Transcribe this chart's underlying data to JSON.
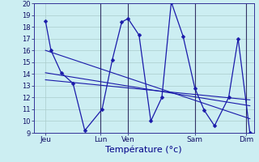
{
  "xlabel": "Température (°c)",
  "background_color": "#cceef2",
  "grid_color": "#aacccc",
  "line_color": "#1a1aaa",
  "ylim": [
    9,
    20
  ],
  "yticks": [
    9,
    10,
    11,
    12,
    13,
    14,
    15,
    16,
    17,
    18,
    19,
    20
  ],
  "xlim": [
    0,
    280
  ],
  "day_positions": [
    15,
    85,
    120,
    205,
    270
  ],
  "day_labels": [
    "Jeu",
    "Lun",
    "Ven",
    "Sam",
    "Dim"
  ],
  "day_vlines": [
    85,
    120,
    205,
    270
  ],
  "main_series_x": [
    15,
    22,
    35,
    50,
    65,
    87,
    100,
    112,
    120,
    134,
    149,
    163,
    175,
    190,
    205,
    217,
    230,
    248,
    260,
    275
  ],
  "main_series_y": [
    18.5,
    16.0,
    14.1,
    13.2,
    9.2,
    11.0,
    15.2,
    18.4,
    18.7,
    17.3,
    10.0,
    12.0,
    20.1,
    17.2,
    12.8,
    10.9,
    9.6,
    12.0,
    17.0,
    9.0
  ],
  "trend_lines": [
    {
      "x": [
        15,
        275
      ],
      "y": [
        16.0,
        10.2
      ]
    },
    {
      "x": [
        15,
        275
      ],
      "y": [
        14.1,
        11.3
      ]
    },
    {
      "x": [
        15,
        275
      ],
      "y": [
        13.5,
        11.8
      ]
    }
  ]
}
